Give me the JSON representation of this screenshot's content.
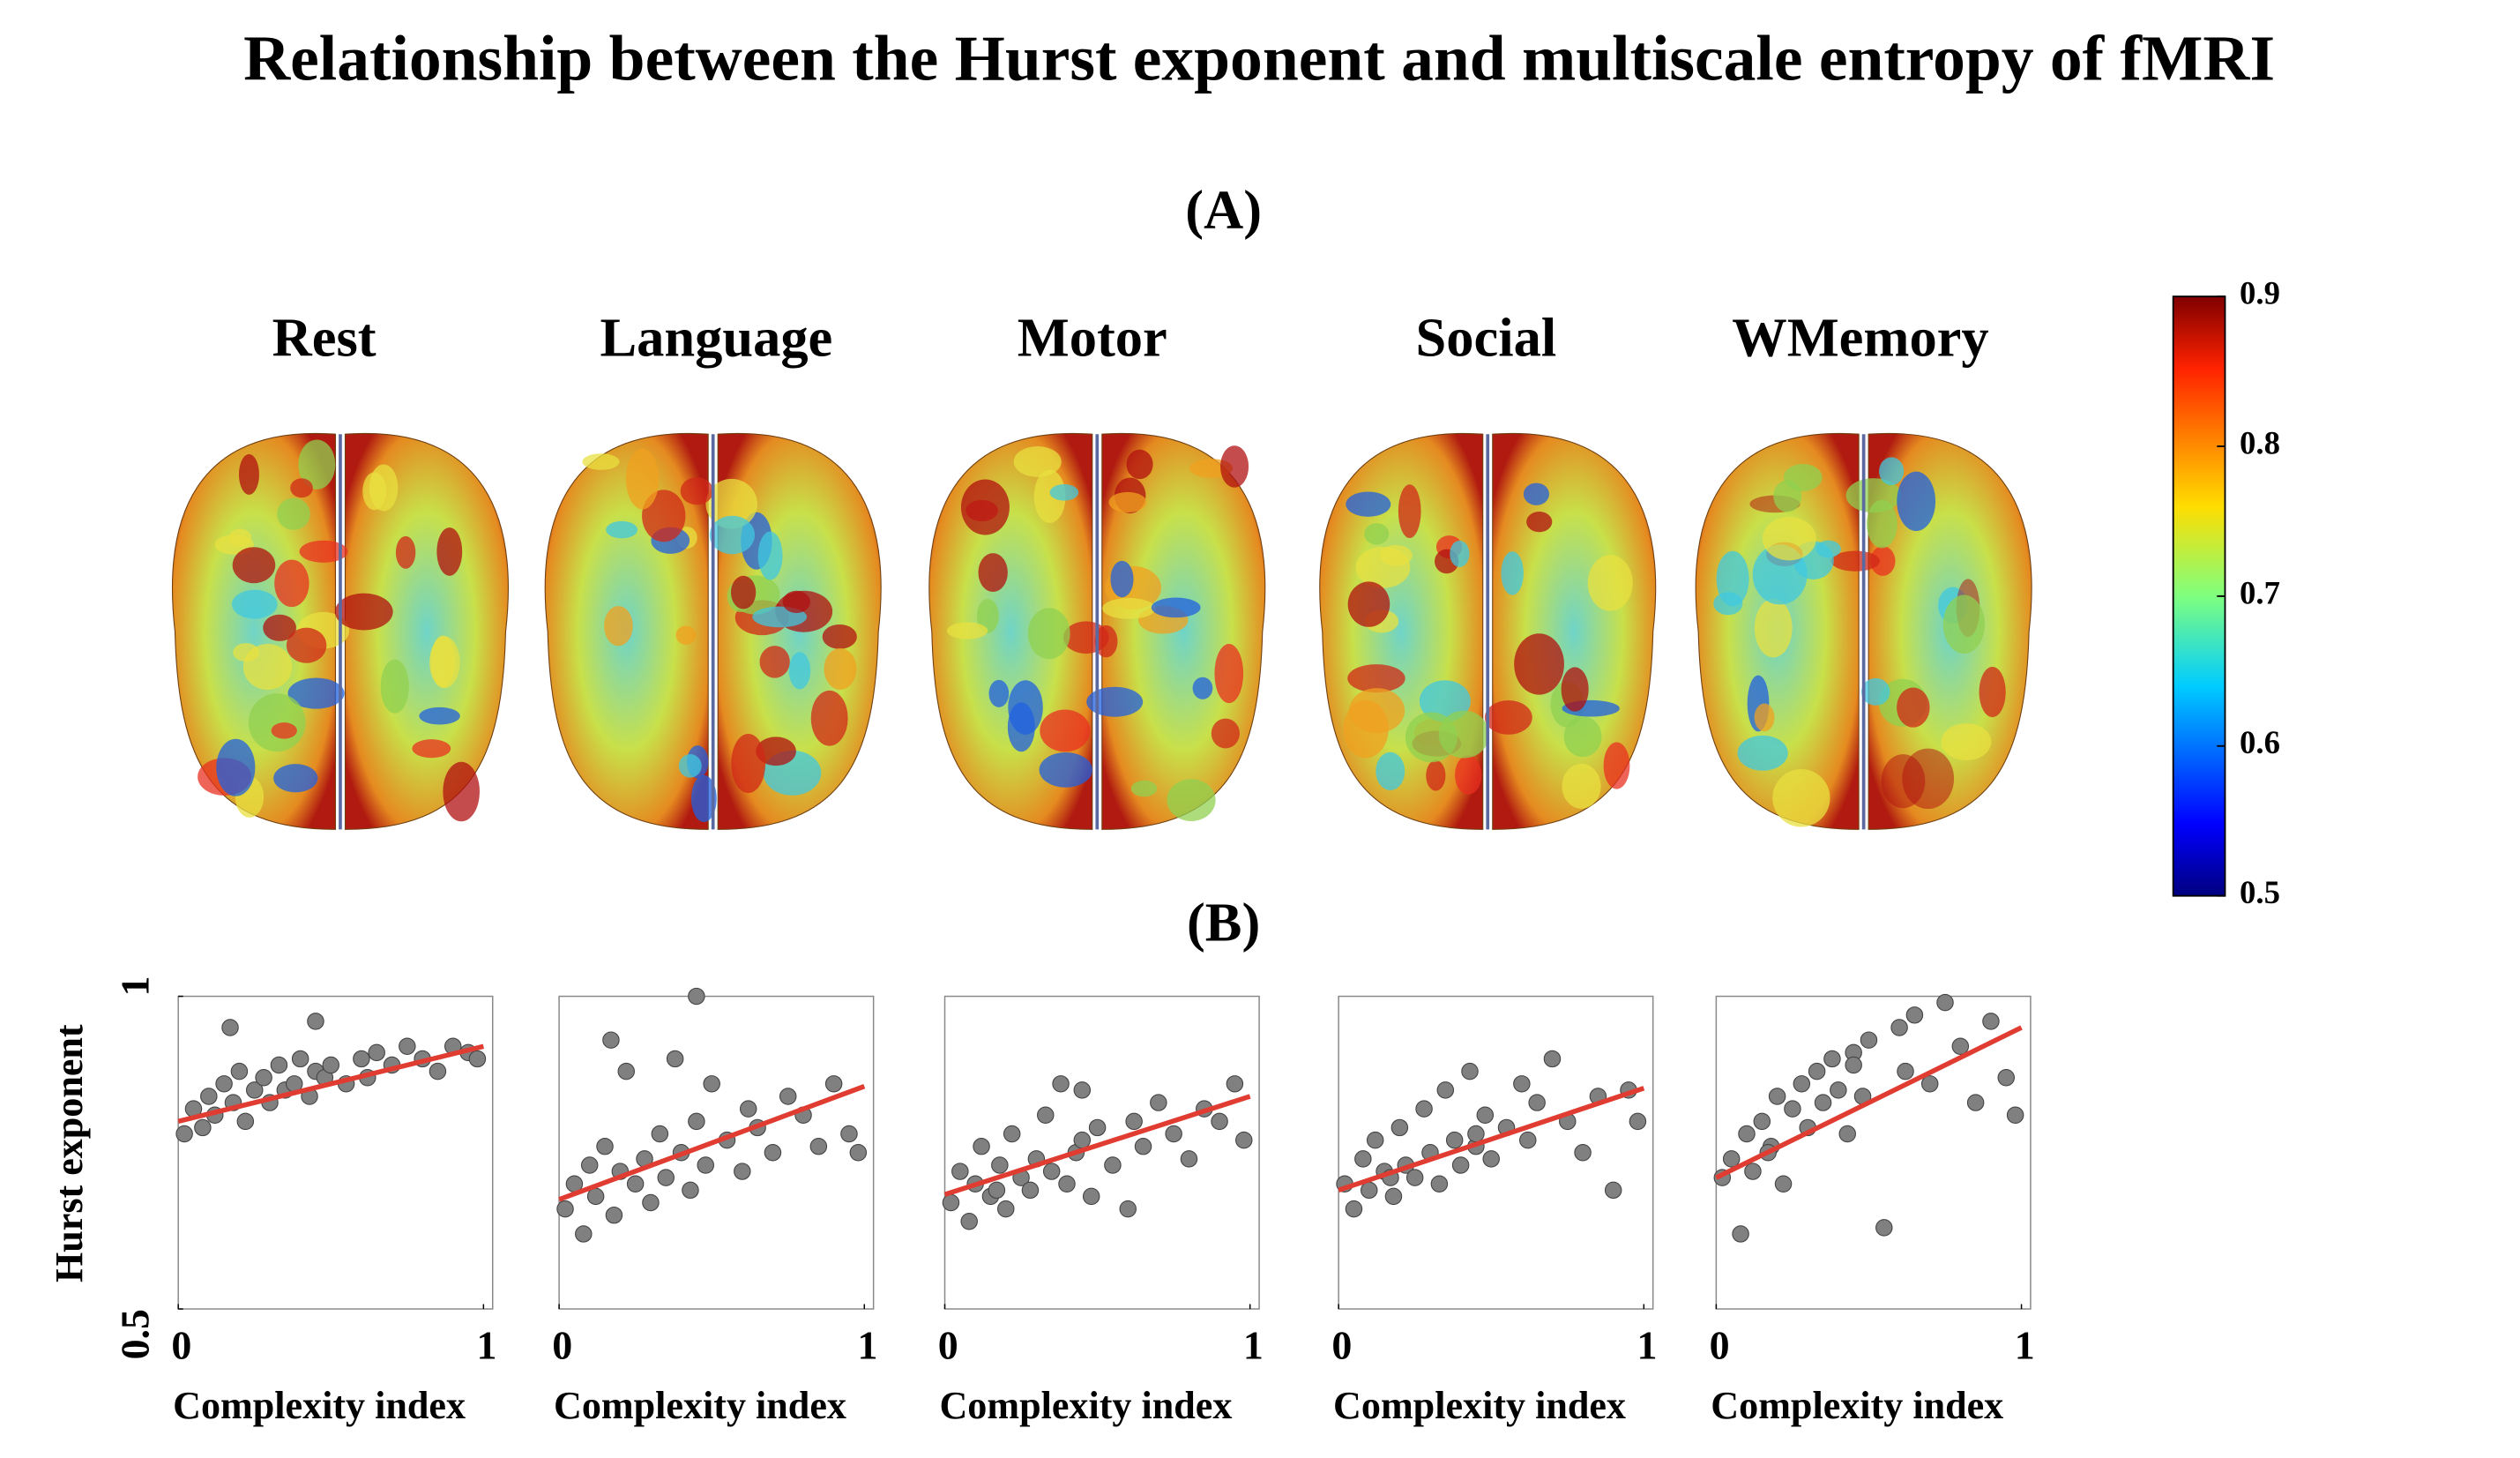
{
  "title": "Relationship between the Hurst exponent and multiscale entropy of fMRI",
  "panel_a_label": "(A)",
  "panel_b_label": "(B)",
  "colorbar": {
    "lim": [
      0.5,
      0.9
    ],
    "ticks": [
      0.9,
      0.8,
      0.7,
      0.6,
      0.5
    ]
  },
  "chart_data": [
    {
      "type": "scatter",
      "title": "Rest",
      "x_label": "Complexity index",
      "y_label": "Hurst exponent",
      "xlim": [
        0,
        1.03
      ],
      "ylim": [
        0.5,
        1
      ],
      "xticks": [
        0,
        1
      ],
      "yticks": [
        1,
        0.5
      ],
      "color": "#808080",
      "fit_color": "#e03c31",
      "x": [
        0.02,
        0.05,
        0.08,
        0.1,
        0.12,
        0.15,
        0.18,
        0.2,
        0.22,
        0.25,
        0.28,
        0.3,
        0.33,
        0.35,
        0.38,
        0.4,
        0.43,
        0.45,
        0.48,
        0.5,
        0.55,
        0.6,
        0.62,
        0.65,
        0.7,
        0.75,
        0.8,
        0.85,
        0.9,
        0.95,
        0.98,
        0.17,
        0.45
      ],
      "y": [
        0.78,
        0.82,
        0.79,
        0.84,
        0.81,
        0.86,
        0.83,
        0.88,
        0.8,
        0.85,
        0.87,
        0.83,
        0.89,
        0.85,
        0.86,
        0.9,
        0.84,
        0.88,
        0.87,
        0.89,
        0.86,
        0.9,
        0.87,
        0.91,
        0.89,
        0.92,
        0.9,
        0.88,
        0.92,
        0.91,
        0.9,
        0.95,
        0.96
      ],
      "fit_x": [
        0,
        1
      ],
      "fit_y": [
        0.8,
        0.92
      ]
    },
    {
      "type": "scatter",
      "title": "Language",
      "x_label": "Complexity index",
      "xlim": [
        0,
        1.03
      ],
      "ylim": [
        0.5,
        1
      ],
      "xticks": [
        0,
        1
      ],
      "color": "#808080",
      "fit_color": "#e03c31",
      "x": [
        0.02,
        0.05,
        0.08,
        0.1,
        0.12,
        0.15,
        0.18,
        0.2,
        0.22,
        0.25,
        0.28,
        0.3,
        0.33,
        0.35,
        0.38,
        0.4,
        0.43,
        0.45,
        0.48,
        0.5,
        0.55,
        0.6,
        0.62,
        0.65,
        0.7,
        0.75,
        0.8,
        0.85,
        0.9,
        0.95,
        0.98,
        0.17,
        0.45
      ],
      "y": [
        0.66,
        0.7,
        0.62,
        0.73,
        0.68,
        0.76,
        0.65,
        0.72,
        0.88,
        0.7,
        0.74,
        0.67,
        0.78,
        0.71,
        0.9,
        0.75,
        0.69,
        0.8,
        0.73,
        0.86,
        0.77,
        0.72,
        0.82,
        0.79,
        0.75,
        0.84,
        0.81,
        0.76,
        0.86,
        0.78,
        0.75,
        0.93,
        1.0
      ],
      "fit_x": [
        0,
        1
      ],
      "fit_y": [
        0.675,
        0.856
      ]
    },
    {
      "type": "scatter",
      "title": "Motor",
      "x_label": "Complexity index",
      "xlim": [
        0,
        1.03
      ],
      "ylim": [
        0.5,
        1
      ],
      "xticks": [
        0,
        1
      ],
      "color": "#808080",
      "fit_color": "#e03c31",
      "x": [
        0.02,
        0.05,
        0.08,
        0.1,
        0.12,
        0.15,
        0.18,
        0.2,
        0.22,
        0.25,
        0.28,
        0.3,
        0.33,
        0.35,
        0.38,
        0.4,
        0.43,
        0.45,
        0.48,
        0.5,
        0.55,
        0.6,
        0.62,
        0.65,
        0.7,
        0.75,
        0.8,
        0.85,
        0.9,
        0.95,
        0.98,
        0.17,
        0.45
      ],
      "y": [
        0.67,
        0.72,
        0.64,
        0.7,
        0.76,
        0.68,
        0.73,
        0.66,
        0.78,
        0.71,
        0.69,
        0.74,
        0.81,
        0.72,
        0.86,
        0.7,
        0.75,
        0.77,
        0.68,
        0.79,
        0.73,
        0.66,
        0.8,
        0.76,
        0.83,
        0.78,
        0.74,
        0.82,
        0.8,
        0.86,
        0.77,
        0.69,
        0.85
      ],
      "fit_x": [
        0,
        1
      ],
      "fit_y": [
        0.683,
        0.84
      ]
    },
    {
      "type": "scatter",
      "title": "Social",
      "x_label": "Complexity index",
      "xlim": [
        0,
        1.03
      ],
      "ylim": [
        0.5,
        1
      ],
      "xticks": [
        0,
        1
      ],
      "color": "#808080",
      "fit_color": "#e03c31",
      "x": [
        0.02,
        0.05,
        0.08,
        0.1,
        0.12,
        0.15,
        0.18,
        0.2,
        0.22,
        0.25,
        0.28,
        0.3,
        0.33,
        0.35,
        0.38,
        0.4,
        0.43,
        0.45,
        0.48,
        0.5,
        0.55,
        0.6,
        0.62,
        0.65,
        0.7,
        0.75,
        0.8,
        0.85,
        0.9,
        0.95,
        0.98,
        0.17,
        0.45
      ],
      "y": [
        0.7,
        0.66,
        0.74,
        0.69,
        0.77,
        0.72,
        0.68,
        0.79,
        0.73,
        0.71,
        0.82,
        0.75,
        0.7,
        0.85,
        0.77,
        0.73,
        0.88,
        0.76,
        0.81,
        0.74,
        0.79,
        0.86,
        0.77,
        0.83,
        0.9,
        0.8,
        0.75,
        0.84,
        0.69,
        0.85,
        0.8,
        0.71,
        0.78
      ],
      "fit_x": [
        0,
        1
      ],
      "fit_y": [
        0.69,
        0.853
      ]
    },
    {
      "type": "scatter",
      "title": "WMemory",
      "x_label": "Complexity index",
      "xlim": [
        0,
        1.03
      ],
      "ylim": [
        0.5,
        1
      ],
      "xticks": [
        0,
        1
      ],
      "color": "#808080",
      "fit_color": "#e03c31",
      "x": [
        0.02,
        0.05,
        0.08,
        0.1,
        0.12,
        0.15,
        0.18,
        0.2,
        0.22,
        0.25,
        0.28,
        0.3,
        0.33,
        0.35,
        0.38,
        0.4,
        0.43,
        0.45,
        0.48,
        0.5,
        0.55,
        0.6,
        0.62,
        0.65,
        0.7,
        0.75,
        0.8,
        0.85,
        0.9,
        0.95,
        0.98,
        0.17,
        0.45
      ],
      "y": [
        0.71,
        0.74,
        0.62,
        0.78,
        0.72,
        0.8,
        0.76,
        0.84,
        0.7,
        0.82,
        0.86,
        0.79,
        0.88,
        0.83,
        0.9,
        0.85,
        0.78,
        0.91,
        0.84,
        0.93,
        0.63,
        0.95,
        0.88,
        0.97,
        0.86,
        0.99,
        0.92,
        0.83,
        0.96,
        0.87,
        0.81,
        0.75,
        0.89
      ],
      "fit_x": [
        0,
        1
      ],
      "fit_y": [
        0.71,
        0.95
      ]
    }
  ]
}
